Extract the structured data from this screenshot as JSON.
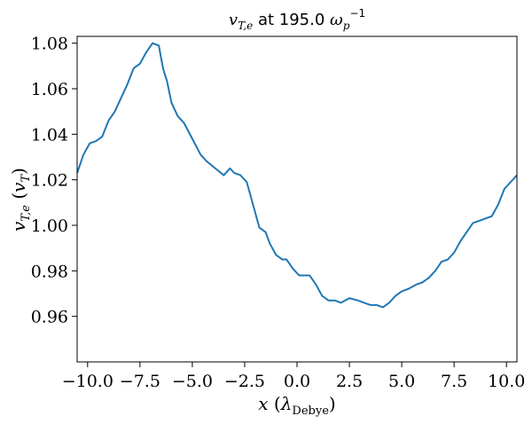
{
  "chart_data": {
    "type": "line",
    "title": "v_T,e at 195.0 ω_p^-1",
    "xlabel": "x (λ_Debye)",
    "ylabel": "v_T,e (v_T)",
    "xlim": [
      -10.5,
      10.5
    ],
    "ylim": [
      0.94,
      1.083
    ],
    "xticks": [
      -10.0,
      -7.5,
      -5.0,
      -2.5,
      0.0,
      2.5,
      5.0,
      7.5,
      10.0
    ],
    "xtick_labels": [
      "−10.0",
      "−7.5",
      "−5.0",
      "−2.5",
      "0.0",
      "2.5",
      "5.0",
      "7.5",
      "10.0"
    ],
    "yticks": [
      0.96,
      0.98,
      1.0,
      1.02,
      1.04,
      1.06,
      1.08
    ],
    "ytick_labels": [
      "0.96",
      "0.98",
      "1.00",
      "1.02",
      "1.04",
      "1.06",
      "1.08"
    ],
    "grid": false,
    "line_color": "#1f77b4",
    "series": [
      {
        "x": [
          -10.5,
          -10.2,
          -9.9,
          -9.6,
          -9.3,
          -9.0,
          -8.7,
          -8.4,
          -8.1,
          -7.8,
          -7.5,
          -7.2,
          -6.9,
          -6.6,
          -6.4,
          -6.2,
          -6.0,
          -5.7,
          -5.4,
          -5.0,
          -4.6,
          -4.3,
          -3.9,
          -3.5,
          -3.2,
          -3.0,
          -2.7,
          -2.4,
          -2.1,
          -1.8,
          -1.5,
          -1.3,
          -1.0,
          -0.7,
          -0.5,
          -0.2,
          0.1,
          0.4,
          0.6,
          0.9,
          1.2,
          1.5,
          1.8,
          2.1,
          2.5,
          2.9,
          3.2,
          3.5,
          3.8,
          4.1,
          4.4,
          4.7,
          5.0,
          5.3,
          5.7,
          6.0,
          6.3,
          6.6,
          6.9,
          7.2,
          7.5,
          7.8,
          8.1,
          8.4,
          8.7,
          9.0,
          9.3,
          9.6,
          9.9,
          10.2,
          10.5
        ],
        "y": [
          1.023,
          1.031,
          1.036,
          1.037,
          1.039,
          1.046,
          1.05,
          1.056,
          1.062,
          1.069,
          1.071,
          1.076,
          1.08,
          1.079,
          1.069,
          1.063,
          1.054,
          1.048,
          1.045,
          1.038,
          1.031,
          1.028,
          1.025,
          1.022,
          1.025,
          1.023,
          1.022,
          1.019,
          1.009,
          0.999,
          0.997,
          0.992,
          0.987,
          0.985,
          0.985,
          0.981,
          0.978,
          0.978,
          0.978,
          0.974,
          0.969,
          0.967,
          0.967,
          0.966,
          0.968,
          0.967,
          0.966,
          0.965,
          0.965,
          0.964,
          0.966,
          0.969,
          0.971,
          0.972,
          0.974,
          0.975,
          0.977,
          0.98,
          0.984,
          0.985,
          0.988,
          0.993,
          0.997,
          1.001,
          1.002,
          1.003,
          1.004,
          1.009,
          1.016,
          1.019,
          1.022
        ]
      }
    ]
  }
}
